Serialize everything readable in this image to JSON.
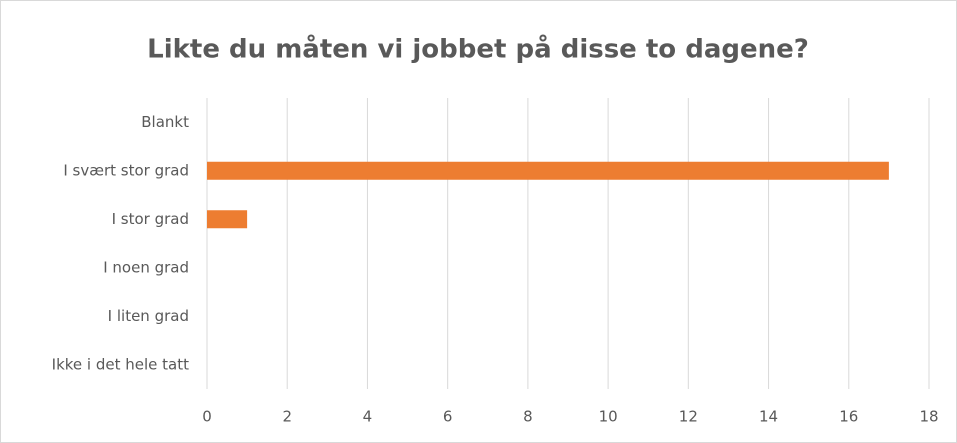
{
  "chart_data": {
    "type": "bar",
    "orientation": "horizontal",
    "title": "Likte du måten vi jobbet på disse to dagene?",
    "categories": [
      "Blankt",
      "I svært stor grad",
      "I stor grad",
      "I noen grad",
      "I liten grad",
      "Ikke i det hele tatt"
    ],
    "values": [
      0,
      17,
      1,
      0,
      0,
      0
    ],
    "color": "#ed7d31",
    "xlim": [
      0,
      18
    ],
    "xticks": [
      0,
      2,
      4,
      6,
      8,
      10,
      12,
      14,
      16,
      18
    ],
    "grid": true
  }
}
